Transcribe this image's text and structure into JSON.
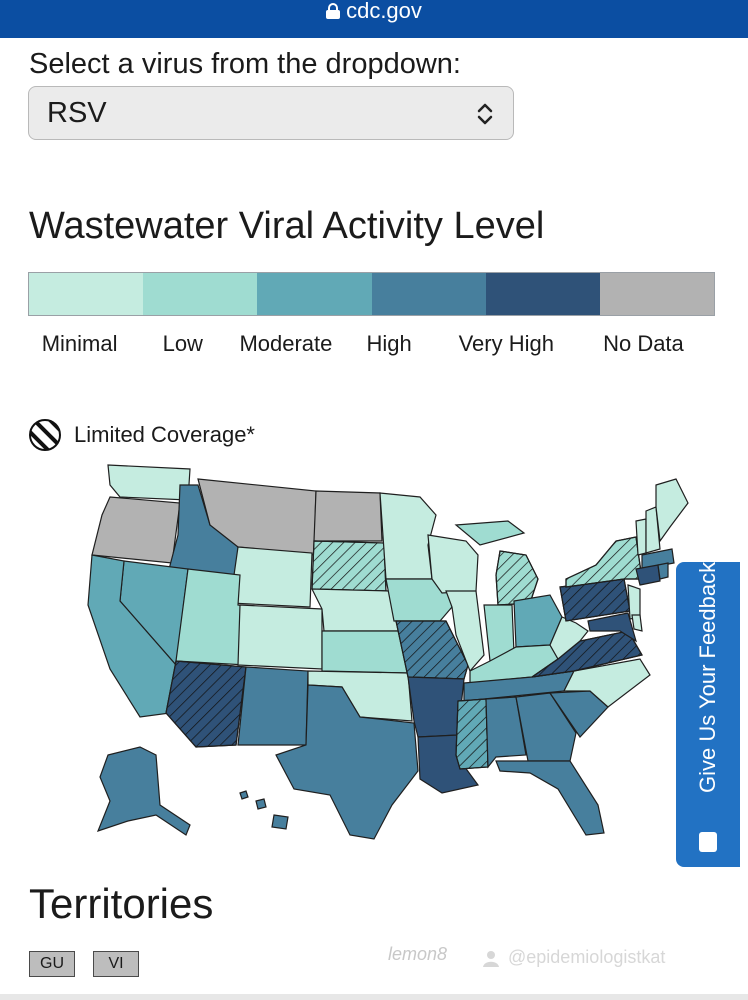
{
  "browser": {
    "url": "cdc.gov"
  },
  "selector": {
    "label": "Select a virus from the dropdown:",
    "selected": "RSV"
  },
  "title": "Wastewater Viral Activity Level",
  "legend": [
    {
      "label": "Minimal",
      "color": "#c5ece0"
    },
    {
      "label": "Low",
      "color": "#9fdcd1"
    },
    {
      "label": "Moderate",
      "color": "#61a9b6"
    },
    {
      "label": "High",
      "color": "#477f9d"
    },
    {
      "label": "Very High",
      "color": "#2f5278"
    },
    {
      "label": "No Data",
      "color": "#b2b2b2"
    }
  ],
  "limited_coverage": "Limited Coverage*",
  "feedback": "Give Us Your Feedback",
  "territories": {
    "heading": "Territories",
    "items": [
      "GU",
      "VI"
    ]
  },
  "watermark": {
    "brand": "lemon8",
    "handle": "@epidemiologistkat"
  }
}
